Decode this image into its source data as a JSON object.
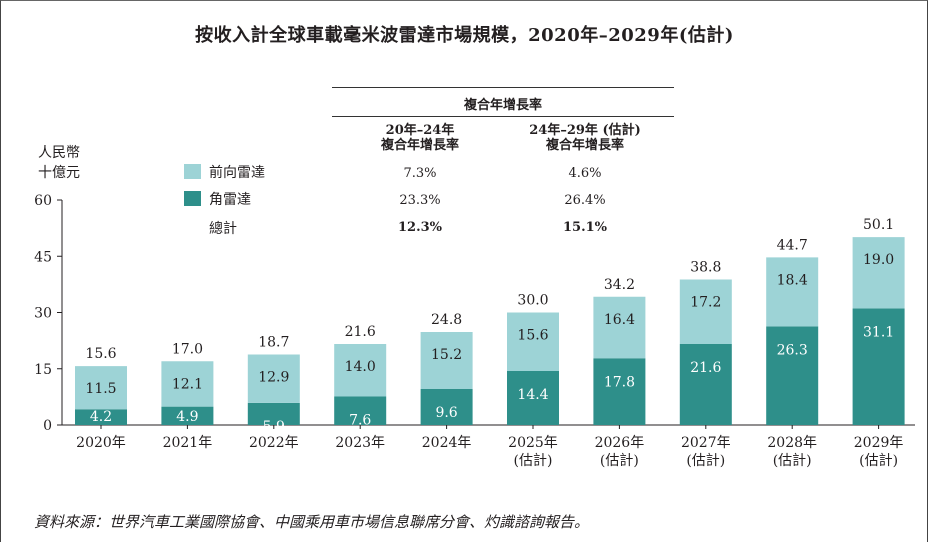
{
  "title": "按收入計全球車載毫米波雷達市場規模，2020年–2029年(估計)",
  "source": "資料來源：世界汽車工業國際協會、中國乘用車市場信息聯席分會、灼識諮詢報告。",
  "colors": {
    "forward": "#9dd3d6",
    "corner": "#2e8f8a",
    "axis": "#231f20"
  },
  "cagr_table": {
    "header": "複合年增長率",
    "columns": [
      {
        "line1": "20年–24年",
        "line2": "複合年增長率"
      },
      {
        "line1": "24年–29年 (估計)",
        "line2": "複合年增長率"
      }
    ],
    "rows": [
      {
        "label": "前向雷達",
        "values": [
          "7.3%",
          "4.6%"
        ]
      },
      {
        "label": "角雷達",
        "values": [
          "23.3%",
          "26.4%"
        ]
      },
      {
        "label": "總計",
        "values": [
          "12.3%",
          "15.1%"
        ]
      }
    ]
  },
  "chart_data": {
    "type": "bar",
    "stacked": true,
    "y_unit": [
      "人民幣",
      "十億元"
    ],
    "ylim": [
      0,
      60
    ],
    "yticks": [
      0,
      15,
      30,
      45,
      60
    ],
    "categories": [
      [
        "2020年"
      ],
      [
        "2021年"
      ],
      [
        "2022年"
      ],
      [
        "2023年"
      ],
      [
        "2024年"
      ],
      [
        "2025年",
        "(估計)"
      ],
      [
        "2026年",
        "(估計)"
      ],
      [
        "2027年",
        "(估計)"
      ],
      [
        "2028年",
        "(估計)"
      ],
      [
        "2029年",
        "(估計)"
      ]
    ],
    "series": [
      {
        "name": "角雷達",
        "values": [
          4.2,
          4.9,
          5.9,
          7.6,
          9.6,
          14.4,
          17.8,
          21.6,
          26.3,
          31.1
        ]
      },
      {
        "name": "前向雷達",
        "values": [
          11.5,
          12.1,
          12.9,
          14.0,
          15.2,
          15.6,
          16.4,
          17.2,
          18.4,
          19.0
        ]
      }
    ],
    "totals": [
      15.6,
      17.0,
      18.7,
      21.6,
      24.8,
      30.0,
      34.2,
      38.8,
      44.7,
      50.1
    ],
    "legend_position": "top-left",
    "grid": false
  }
}
